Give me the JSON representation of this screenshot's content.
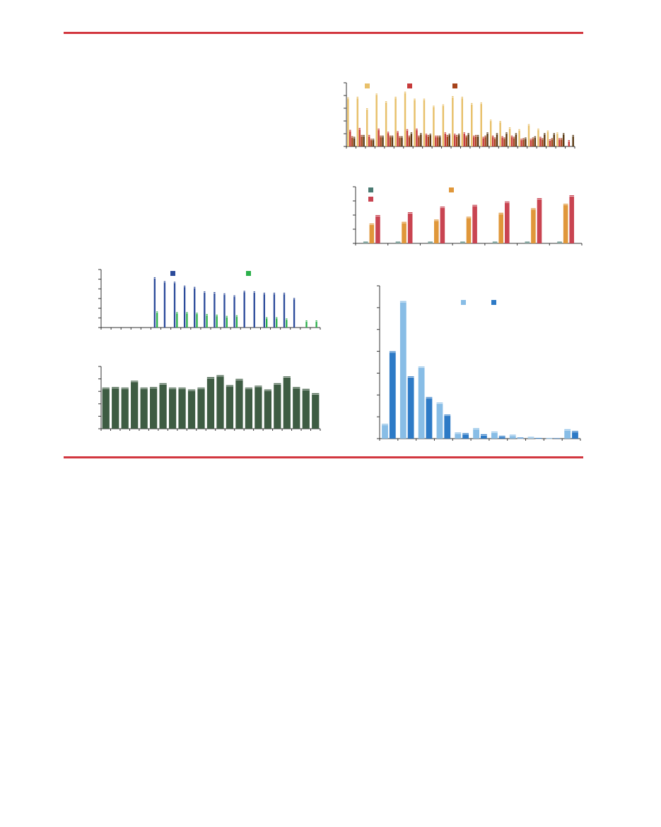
{
  "colors": {
    "rule": "#d2373f",
    "axis": "#333333"
  },
  "chart_data": [
    {
      "id": "chart1",
      "type": "bar",
      "grouped": true,
      "categories": [
        "",
        "",
        "",
        "",
        "",
        "",
        "",
        "",
        "",
        "",
        "",
        "",
        "",
        "",
        "",
        "",
        "",
        "",
        "",
        "",
        "",
        "",
        "",
        ""
      ],
      "ylim": [
        0,
        100
      ],
      "yticks": [
        0,
        20,
        40,
        60,
        80,
        100
      ],
      "legend_placement": "top-left",
      "series": [
        {
          "color": "#e8c06a",
          "values": [
            77,
            78,
            60,
            83,
            71,
            78,
            86,
            75,
            75,
            64,
            66,
            79,
            78,
            68,
            69,
            42,
            40,
            30,
            27,
            35,
            28,
            25,
            22,
            0
          ]
        },
        {
          "color": "#c73b3b",
          "values": [
            26,
            29,
            18,
            28,
            23,
            24,
            27,
            28,
            20,
            17,
            22,
            20,
            22,
            17,
            15,
            17,
            16,
            17,
            12,
            12,
            15,
            11,
            13,
            10
          ]
        },
        {
          "color": "#a6431a",
          "values": [
            16,
            18,
            12,
            17,
            17,
            16,
            17,
            17,
            18,
            17,
            18,
            18,
            17,
            18,
            17,
            14,
            14,
            15,
            13,
            14,
            13,
            13,
            13,
            0
          ]
        },
        {
          "color": "#5a3a14",
          "values": [
            15,
            18,
            12,
            17,
            17,
            16,
            22,
            21,
            20,
            17,
            20,
            20,
            21,
            18,
            22,
            21,
            22,
            21,
            14,
            16,
            21,
            21,
            21,
            18
          ]
        }
      ]
    },
    {
      "id": "chart2",
      "type": "bar",
      "grouped": true,
      "categories": [
        "",
        "",
        "",
        "",
        "",
        "",
        ""
      ],
      "ylim": [
        0,
        100
      ],
      "yticks": [
        0,
        25,
        50,
        75,
        100
      ],
      "legend_placement": "top-left",
      "series": [
        {
          "color": "#4a7a72",
          "values": [
            3,
            3,
            3,
            3,
            3,
            3,
            3
          ]
        },
        {
          "color": "#e0973a",
          "values": [
            35,
            38,
            42,
            47,
            54,
            62,
            70
          ]
        },
        {
          "color": "#c94451",
          "values": [
            50,
            55,
            65,
            68,
            74,
            80,
            85
          ]
        }
      ]
    },
    {
      "id": "chart3",
      "type": "bar",
      "grouped": true,
      "categories": [
        "",
        "",
        "",
        "",
        "",
        "",
        "",
        "",
        "",
        "",
        "",
        "",
        "",
        "",
        "",
        "",
        "",
        "",
        "",
        "",
        "",
        ""
      ],
      "ylim": [
        0,
        90
      ],
      "yticks": [
        0,
        15,
        30,
        45,
        60,
        75,
        90
      ],
      "legend_placement": "top",
      "series": [
        {
          "color": "#2b4a9a",
          "values": [
            0,
            0,
            0,
            0,
            0,
            78,
            72,
            71,
            65,
            63,
            56,
            55,
            53,
            50,
            57,
            56,
            54,
            54,
            54,
            46,
            0,
            0
          ]
        },
        {
          "color": "#2bb04a",
          "values": [
            0,
            0,
            0,
            0,
            0,
            25,
            0,
            24,
            24,
            23,
            21,
            20,
            18,
            19,
            0,
            0,
            16,
            16,
            14,
            0,
            11,
            11
          ]
        }
      ]
    },
    {
      "id": "chart4",
      "type": "bar",
      "categories": [
        "",
        "",
        "",
        "",
        "",
        "",
        "",
        "",
        "",
        "",
        "",
        "",
        "",
        "",
        "",
        "",
        "",
        "",
        "",
        "",
        "",
        "",
        ""
      ],
      "ylim": [
        0,
        100
      ],
      "yticks": [
        0,
        20,
        40,
        60,
        80,
        100
      ],
      "series": [
        {
          "color": "#3e5c43",
          "values": [
            66,
            67,
            66,
            77,
            66,
            67,
            73,
            66,
            66,
            63,
            66,
            83,
            86,
            70,
            80,
            66,
            69,
            63,
            73,
            84,
            67,
            64,
            57
          ]
        }
      ]
    },
    {
      "id": "chart5",
      "type": "bar",
      "grouped": true,
      "categories": [
        "",
        "",
        "",
        "",
        "",
        "",
        "",
        "",
        "",
        "",
        ""
      ],
      "ylim": [
        0,
        70
      ],
      "yticks": [
        0,
        10,
        20,
        30,
        40,
        50,
        60,
        70
      ],
      "legend_placement": "top-right",
      "series": [
        {
          "color": "#88bde6",
          "values": [
            6.8,
            63,
            33,
            16.5,
            2.8,
            4.8,
            3.2,
            1.8,
            0.8,
            0.3,
            4.3
          ]
        },
        {
          "color": "#2d7ac6",
          "values": [
            40,
            28.5,
            19,
            11,
            2.5,
            2,
            1.3,
            0.5,
            0.3,
            0.2,
            3.5
          ]
        }
      ]
    }
  ]
}
